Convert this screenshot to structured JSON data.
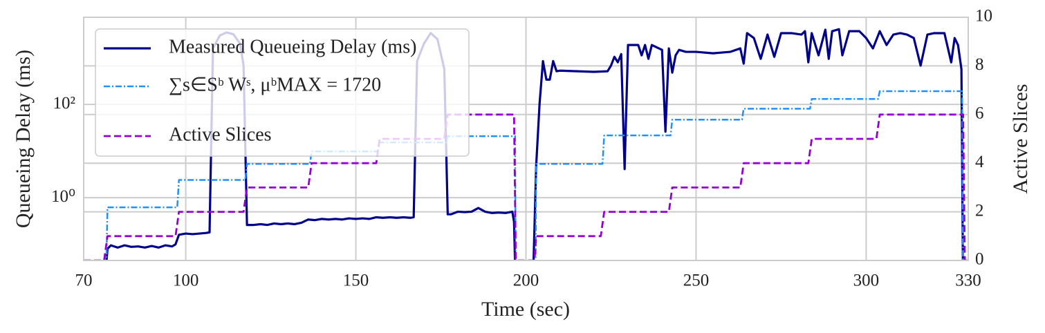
{
  "chart_data": {
    "type": "line",
    "xlabel": "Time (sec)",
    "ylabel": "Queueing Delay (ms)",
    "y2label": "Active Slices",
    "xlim": [
      70,
      330
    ],
    "xticks": [
      70,
      100,
      150,
      200,
      250,
      300,
      330
    ],
    "ylim": [
      0.045,
      7400
    ],
    "yscale": "log",
    "yticks": [
      {
        "value": 1,
        "label": "10⁰"
      },
      {
        "value": 100,
        "label": "10²"
      }
    ],
    "y2lim": [
      0,
      10
    ],
    "y2ticks": [
      0,
      2,
      4,
      6,
      8,
      10
    ],
    "grid": true,
    "legend": "upper left",
    "series": [
      {
        "name": "Measured Queueing Delay (ms)",
        "color": "#00008b",
        "style": "solid",
        "x": [
          76,
          77,
          78,
          80,
          82,
          84,
          86,
          88,
          90,
          92,
          94,
          96,
          97,
          98,
          100,
          102,
          104,
          106,
          107,
          108,
          110,
          112,
          114,
          116,
          117,
          118,
          120,
          122,
          124,
          126,
          128,
          130,
          132,
          134,
          136,
          138,
          140,
          142,
          144,
          146,
          148,
          150,
          152,
          154,
          156,
          158,
          160,
          162,
          164,
          166,
          167,
          168,
          170,
          172,
          174,
          176,
          177,
          178,
          180,
          182,
          184,
          186,
          188,
          190,
          192,
          194,
          196,
          196.5,
          197,
          202,
          203,
          204,
          205,
          206,
          207,
          208,
          209,
          210,
          215,
          220,
          224,
          225,
          226,
          227,
          228,
          229,
          230,
          231,
          233,
          234,
          235,
          236,
          237,
          240,
          241,
          242,
          243,
          244,
          245,
          247,
          250,
          255,
          260,
          263,
          264,
          265,
          267,
          269,
          271,
          273,
          275,
          278,
          281,
          282,
          283,
          284,
          286,
          288,
          289,
          290,
          292,
          293,
          295,
          298,
          300,
          302,
          304,
          306,
          308,
          310,
          312,
          314,
          316,
          318,
          320,
          323,
          325,
          326,
          327,
          328,
          328.5
        ],
        "values": [
          0.01,
          0.08,
          0.095,
          0.085,
          0.095,
          0.088,
          0.09,
          0.085,
          0.092,
          0.085,
          0.095,
          0.09,
          0.1,
          0.16,
          0.17,
          0.165,
          0.17,
          0.175,
          0.18,
          1600,
          3000,
          3500,
          3200,
          2000,
          680,
          0.26,
          0.26,
          0.27,
          0.26,
          0.28,
          0.27,
          0.28,
          0.27,
          0.29,
          0.34,
          0.33,
          0.35,
          0.34,
          0.35,
          0.34,
          0.36,
          0.35,
          0.36,
          0.35,
          0.38,
          0.37,
          0.38,
          0.37,
          0.38,
          0.37,
          0.38,
          850,
          2000,
          3400,
          2500,
          570,
          0.44,
          0.44,
          0.5,
          0.49,
          0.5,
          0.6,
          0.5,
          0.47,
          0.48,
          0.47,
          0.5,
          0.3,
          0.01,
          0.01,
          4.8,
          104,
          850,
          340,
          340,
          850,
          515,
          530,
          515,
          500,
          515,
          680,
          1050,
          800,
          1200,
          4.1,
          1880,
          1880,
          1880,
          1130,
          1880,
          950,
          1880,
          1480,
          26,
          1590,
          480,
          1130,
          1480,
          1340,
          1340,
          1250,
          1340,
          1590,
          750,
          3380,
          2650,
          950,
          3150,
          1050,
          3380,
          3380,
          3150,
          3720,
          800,
          3380,
          1130,
          4000,
          950,
          3720,
          4100,
          1130,
          3720,
          3720,
          2650,
          1590,
          3720,
          1880,
          3150,
          3380,
          3150,
          2650,
          680,
          3150,
          3380,
          3380,
          800,
          2650,
          1880,
          570,
          0.01
        ]
      },
      {
        "name": "∑s∈Sᵇ Wˢ, μᵇMAX = 1720",
        "color": "#1e90ff",
        "style": "dashdot",
        "x": [
          70,
          76.5,
          77,
          97.5,
          98,
          117.5,
          118,
          136.5,
          137,
          156.5,
          157,
          176.5,
          177,
          196.8,
          197,
          202.8,
          203,
          222.5,
          223,
          242.5,
          243,
          263.5,
          264,
          283.5,
          284,
          303.5,
          304,
          328.2,
          328.5
        ],
        "values": [
          0.01,
          0.01,
          0.62,
          0.62,
          2.4,
          2.4,
          5.3,
          5.3,
          9.8,
          9.8,
          15.3,
          15.3,
          20.8,
          20.8,
          0.01,
          0.01,
          5.3,
          5.3,
          21.6,
          21.6,
          47,
          47,
          81,
          81,
          131,
          131,
          192,
          192,
          0.01
        ]
      },
      {
        "name": "Active Slices",
        "color": "#9400d3",
        "style": "dashed",
        "axis": "y2",
        "x": [
          70,
          76,
          77,
          97,
          98,
          117,
          118,
          136,
          137,
          156,
          157,
          176,
          177,
          196.5,
          197,
          202.5,
          203,
          222,
          223,
          242,
          243,
          263,
          264,
          283,
          284,
          303,
          304,
          328.5,
          329,
          330
        ],
        "values": [
          0,
          0,
          1,
          1,
          2,
          2,
          3,
          3,
          4,
          4,
          5,
          5,
          6,
          6,
          0,
          0,
          1,
          1,
          2,
          2,
          3,
          3,
          4,
          4,
          5,
          5,
          6,
          6,
          0,
          0
        ]
      }
    ]
  }
}
